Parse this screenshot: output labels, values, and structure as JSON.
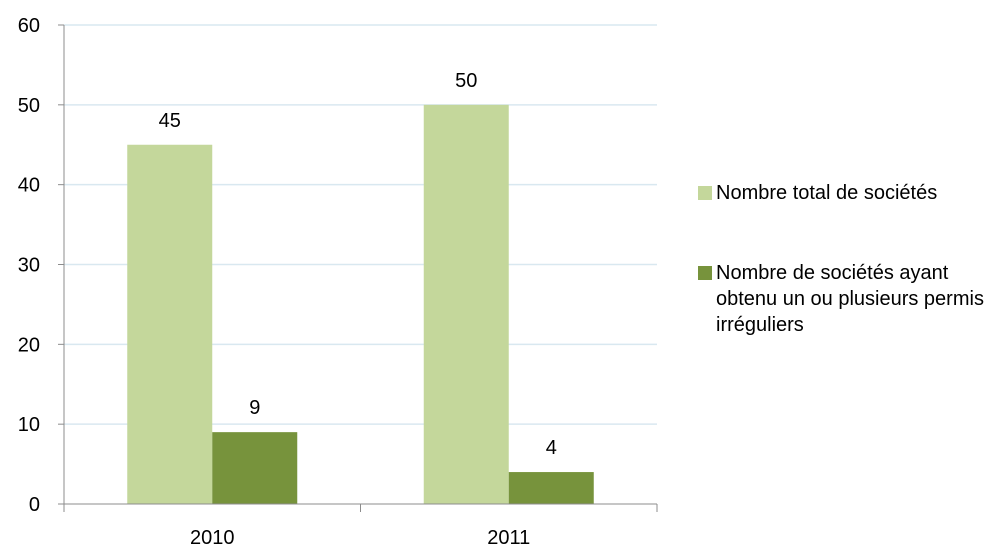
{
  "chart_data": {
    "type": "bar",
    "categories": [
      "2010",
      "2011"
    ],
    "series": [
      {
        "name": "Nombre total de sociétés",
        "values": [
          45,
          50
        ],
        "color": "#c4d79b"
      },
      {
        "name": "Nombre de sociétés ayant obtenu un ou plusieurs permis irréguliers",
        "values": [
          9,
          4
        ],
        "color": "#77933c"
      }
    ],
    "ylim": [
      0,
      60
    ],
    "yticks": [
      "0",
      "10",
      "20",
      "30",
      "40",
      "50",
      "60"
    ],
    "grid": true,
    "gridColor": "#d9e8f0",
    "legend": "right",
    "title": "",
    "xlabel": "",
    "ylabel": ""
  }
}
